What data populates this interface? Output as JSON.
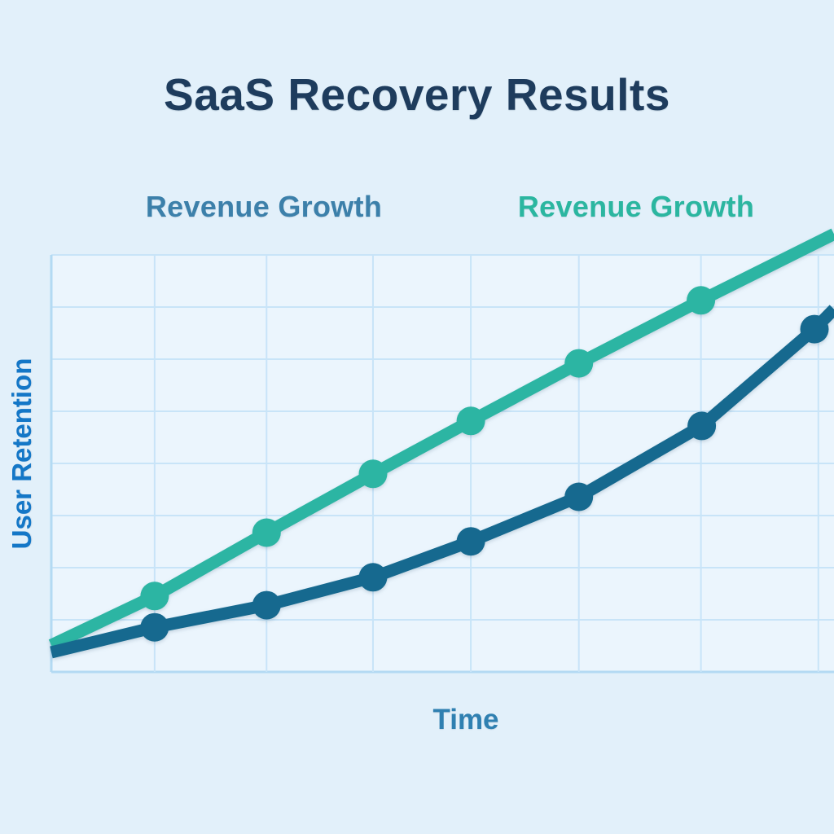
{
  "title": "SaaS Recovery Results",
  "legend": {
    "dark_label": "Revenue Growth",
    "teal_label": "Revenue Growth"
  },
  "axes": {
    "x_label": "Time",
    "y_label": "User Retention"
  },
  "colors": {
    "page_background": "#e2f0fa",
    "plot_background": "#ebf5fd",
    "gridline": "#c8e4f8",
    "axis_line": "#b3daf3",
    "title_text": "#1e3c5d",
    "dark_series": "#16698f",
    "teal_series": "#2cb5a3",
    "dark_legend_text": "#3c80aa",
    "teal_legend_text": "#2bb6a0",
    "y_label_text": "#1477c7",
    "x_label_text": "#2f80b1"
  },
  "chart_data": {
    "type": "line",
    "title": "SaaS Recovery Results",
    "xlabel": "Time",
    "ylabel": "User Retention",
    "legend": [
      "Revenue Growth",
      "Revenue Growth"
    ],
    "legend_position": "top",
    "grid": true,
    "x_tick_labels": [],
    "y_tick_labels": [],
    "xlim_percent": [
      0,
      100
    ],
    "ylim": [
      0,
      100
    ],
    "grid_x_percent": [
      0,
      13.2,
      27.5,
      41.1,
      53.6,
      67.4,
      83.0,
      98.0
    ],
    "grid_y_values": [
      0,
      12.5,
      25,
      37.5,
      50,
      62.5,
      75,
      87.5,
      100
    ],
    "series": [
      {
        "name": "Revenue Growth (user retention curve, dark)",
        "color": "#16698f",
        "points": [
          {
            "x": 0,
            "y": 4.7,
            "marker": false
          },
          {
            "x": 13.2,
            "y": 10.7,
            "marker": true
          },
          {
            "x": 27.5,
            "y": 16.0,
            "marker": true
          },
          {
            "x": 41.1,
            "y": 22.7,
            "marker": true
          },
          {
            "x": 53.6,
            "y": 31.3,
            "marker": true
          },
          {
            "x": 67.4,
            "y": 42.0,
            "marker": true
          },
          {
            "x": 83.1,
            "y": 59.0,
            "marker": true
          },
          {
            "x": 97.5,
            "y": 82.2,
            "marker": true
          },
          {
            "x": 100,
            "y": 87.0,
            "marker": false
          }
        ]
      },
      {
        "name": "Revenue Growth (teal)",
        "color": "#2cb5a3",
        "points": [
          {
            "x": 0,
            "y": 6.4,
            "marker": false
          },
          {
            "x": 13.2,
            "y": 18.2,
            "marker": true
          },
          {
            "x": 27.5,
            "y": 33.4,
            "marker": true
          },
          {
            "x": 41.1,
            "y": 47.5,
            "marker": true
          },
          {
            "x": 53.6,
            "y": 60.2,
            "marker": true
          },
          {
            "x": 67.4,
            "y": 74.0,
            "marker": true
          },
          {
            "x": 83.0,
            "y": 89.1,
            "marker": true
          },
          {
            "x": 100,
            "y": 105.0,
            "marker": false
          }
        ]
      }
    ]
  }
}
